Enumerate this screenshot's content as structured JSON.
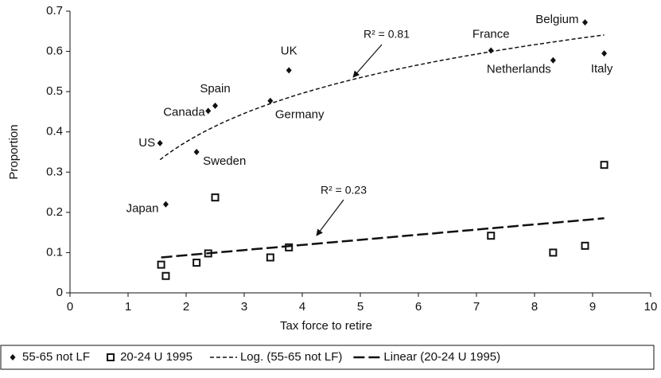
{
  "chart_data": {
    "type": "scatter",
    "x_label": "Tax force to retire",
    "y_label": "Proportion",
    "xlim": [
      0,
      10
    ],
    "xticks": [
      0,
      1,
      2,
      3,
      4,
      5,
      6,
      7,
      8,
      9,
      10
    ],
    "ylim": [
      0,
      0.7
    ],
    "yticks": [
      0,
      0.1,
      0.2,
      0.3,
      0.4,
      0.5,
      0.6,
      0.7
    ],
    "grid": false,
    "legend": "bottom",
    "series": [
      {
        "name": "55-65 not LF",
        "color": "#111111",
        "marker": "diamond",
        "x": [
          1.55,
          1.65,
          2.18,
          2.38,
          2.5,
          3.45,
          3.77,
          7.25,
          8.32,
          8.87,
          9.2
        ],
        "values": [
          0.372,
          0.22,
          0.35,
          0.452,
          0.465,
          0.477,
          0.553,
          0.602,
          0.578,
          0.672,
          0.595
        ],
        "labels": [
          "US",
          "Japan",
          "Sweden",
          "Canada",
          "Spain",
          "Germany",
          "UK",
          "France",
          "Netherlands",
          "Belgium",
          "Italy"
        ],
        "trendline": {
          "type": "log",
          "name": "Log. (55-65 not LF)",
          "label": "R² = 0.81"
        }
      },
      {
        "name": "20-24 U 1995",
        "color": "#111111",
        "marker": "square",
        "x": [
          1.57,
          1.65,
          2.18,
          2.38,
          2.5,
          3.45,
          3.77,
          7.25,
          8.32,
          8.87,
          9.2
        ],
        "values": [
          0.07,
          0.042,
          0.075,
          0.098,
          0.237,
          0.088,
          0.113,
          0.142,
          0.1,
          0.117,
          0.318
        ],
        "trendline": {
          "type": "linear",
          "name": "Linear (20-24 U 1995)",
          "label": "R² = 0.23"
        }
      }
    ]
  }
}
